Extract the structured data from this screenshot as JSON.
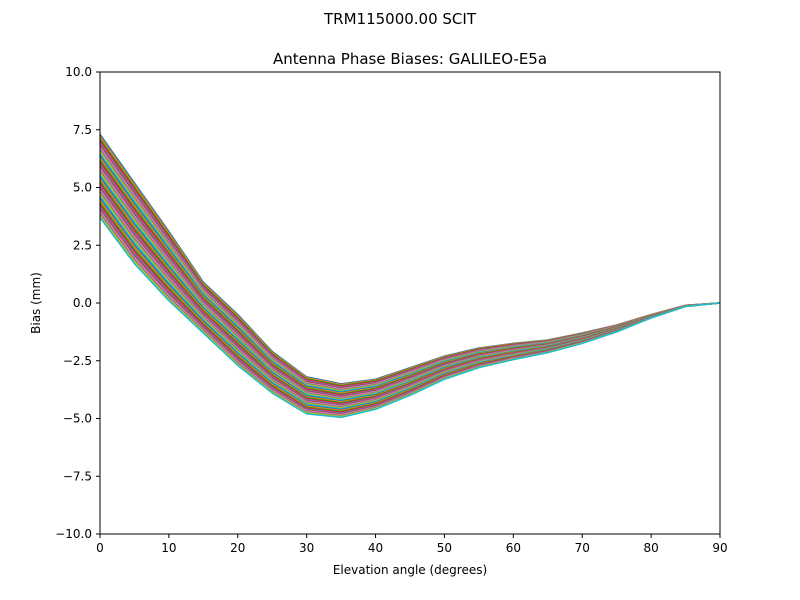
{
  "figure": {
    "suptitle": "TRM115000.00    SCIT"
  },
  "chart_data": {
    "type": "line",
    "title": "Antenna Phase Biases: GALILEO-E5a",
    "xlabel": "Elevation angle (degrees)",
    "ylabel": "Bias (mm)",
    "xlim": [
      0,
      90
    ],
    "ylim": [
      -10,
      10
    ],
    "xticks": [
      0,
      10,
      20,
      30,
      40,
      50,
      60,
      70,
      80,
      90
    ],
    "yticks": [
      10.0,
      7.5,
      5.0,
      2.5,
      0.0,
      -2.5,
      -5.0,
      -7.5,
      -10.0
    ],
    "xtick_labels": [
      "0",
      "10",
      "20",
      "30",
      "40",
      "50",
      "60",
      "70",
      "80",
      "90"
    ],
    "ytick_labels": [
      "10.0",
      "7.5",
      "5.0",
      "2.5",
      "0.0",
      "−2.5",
      "−5.0",
      "−7.5",
      "−10.0"
    ],
    "grid": false,
    "legend": "none",
    "x": [
      0,
      5,
      10,
      15,
      20,
      25,
      30,
      35,
      40,
      45,
      50,
      55,
      60,
      65,
      70,
      75,
      80,
      85,
      90
    ],
    "envelope": {
      "upper": [
        7.3,
        5.2,
        3.1,
        0.9,
        -0.5,
        -2.1,
        -3.2,
        -3.5,
        -3.3,
        -2.8,
        -2.3,
        -1.95,
        -1.75,
        -1.6,
        -1.3,
        -0.95,
        -0.5,
        -0.1,
        0.0
      ],
      "lower": [
        3.7,
        1.7,
        0.1,
        -1.3,
        -2.7,
        -3.9,
        -4.8,
        -4.95,
        -4.6,
        -4.0,
        -3.3,
        -2.8,
        -2.45,
        -2.15,
        -1.75,
        -1.25,
        -0.65,
        -0.15,
        0.0
      ]
    },
    "series_count": 40,
    "series_colors": [
      "#1f77b4",
      "#ff7f0e",
      "#2ca02c",
      "#d62728",
      "#9467bd",
      "#8c564b",
      "#e377c2",
      "#7f7f7f",
      "#bcbd22",
      "#17becf"
    ]
  }
}
